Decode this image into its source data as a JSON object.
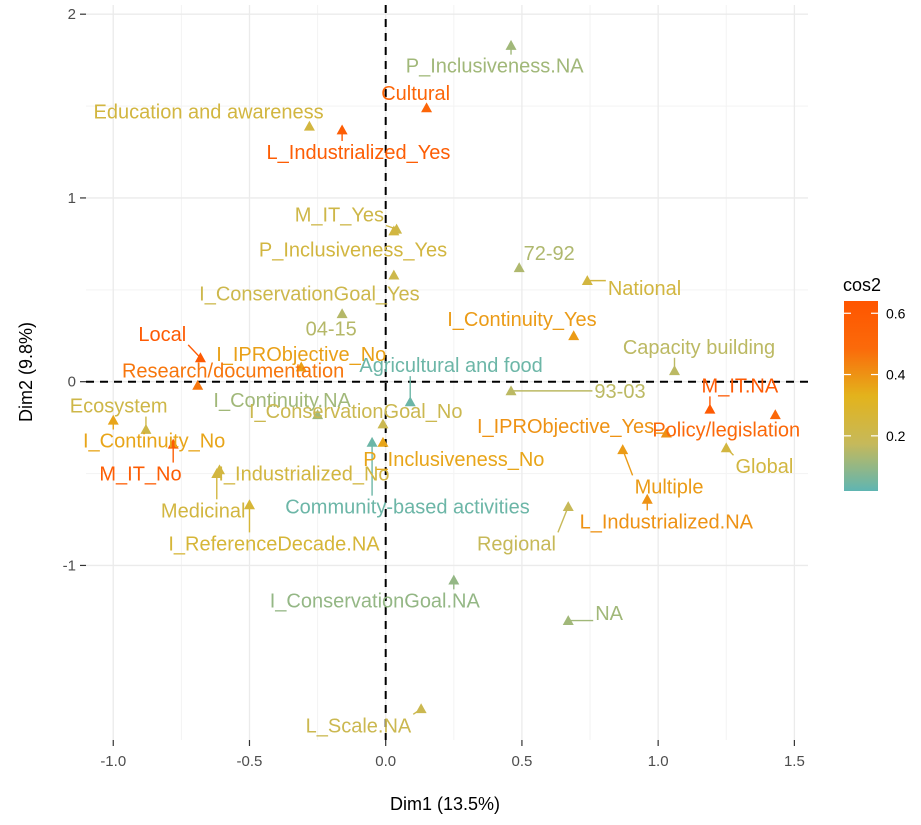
{
  "chart_data": {
    "type": "scatter",
    "title": "",
    "xlabel": "Dim1 (13.5%)",
    "ylabel": "Dim2 (9.8%)",
    "xlim": [
      -1.1,
      1.55
    ],
    "ylim": [
      -1.95,
      2.05
    ],
    "x_ticks": [
      -1.0,
      -0.5,
      0.0,
      0.5,
      1.0,
      1.5
    ],
    "x_tick_labels": [
      "-1.0",
      "-0.5",
      "0.0",
      "0.5",
      "1.0",
      "1.5"
    ],
    "y_ticks": [
      -1,
      0,
      1,
      2
    ],
    "y_tick_labels": [
      "-1",
      "0",
      "1",
      "2"
    ],
    "grid": true,
    "reference_lines": "dashed lines at x = 0 and y = 0",
    "marker": "triangle",
    "legend": {
      "title": "cos2",
      "position": "right",
      "tick_values": [
        0.2,
        0.4,
        0.6
      ],
      "tick_labels": [
        "0.2",
        "0.4",
        "0.6"
      ],
      "range": [
        0.02,
        0.64
      ],
      "colors": [
        "#5fb5b2",
        "#c6b95a",
        "#e3b31c",
        "#fb6a0a",
        "#ff5500"
      ]
    },
    "points": [
      {
        "label": "P_Inclusiveness.NA",
        "x": 0.46,
        "y": 1.83,
        "cos2": 0.12,
        "lx": 0.4,
        "ly": 1.72
      },
      {
        "label": "Cultural",
        "x": 0.15,
        "y": 1.49,
        "cos2": 0.52,
        "lx": 0.11,
        "ly": 1.57
      },
      {
        "label": "Education and awareness",
        "x": -0.28,
        "y": 1.39,
        "cos2": 0.24,
        "lx": -0.65,
        "ly": 1.47
      },
      {
        "label": "L_Industrialized_Yes",
        "x": -0.16,
        "y": 1.37,
        "cos2": 0.58,
        "lx": -0.1,
        "ly": 1.25
      },
      {
        "label": "M_IT_Yes",
        "x": 0.04,
        "y": 0.83,
        "cos2": 0.22,
        "lx": -0.17,
        "ly": 0.91
      },
      {
        "label": "P_Inclusiveness_Yes",
        "x": 0.03,
        "y": 0.82,
        "cos2": 0.24,
        "lx": -0.12,
        "ly": 0.72
      },
      {
        "label": "72-92",
        "x": 0.49,
        "y": 0.62,
        "cos2": 0.14,
        "lx": 0.6,
        "ly": 0.7
      },
      {
        "label": "National",
        "x": 0.74,
        "y": 0.55,
        "cos2": 0.24,
        "lx": 0.95,
        "ly": 0.51
      },
      {
        "label": "I_ConservationGoal_Yes",
        "x": 0.03,
        "y": 0.58,
        "cos2": 0.21,
        "lx": -0.28,
        "ly": 0.48
      },
      {
        "label": "04-15",
        "x": -0.16,
        "y": 0.37,
        "cos2": 0.15,
        "lx": -0.2,
        "ly": 0.29
      },
      {
        "label": "I_Continuity_Yes",
        "x": 0.69,
        "y": 0.25,
        "cos2": 0.38,
        "lx": 0.5,
        "ly": 0.34
      },
      {
        "label": "Local",
        "x": -0.68,
        "y": 0.13,
        "cos2": 0.6,
        "lx": -0.82,
        "ly": 0.26
      },
      {
        "label": "I_IPRObjective_No",
        "x": -0.31,
        "y": 0.08,
        "cos2": 0.37,
        "lx": -0.31,
        "ly": 0.15
      },
      {
        "label": "Capacity building",
        "x": 1.06,
        "y": 0.06,
        "cos2": 0.16,
        "lx": 1.15,
        "ly": 0.19
      },
      {
        "label": "Research/documentation",
        "x": -0.69,
        "y": -0.02,
        "cos2": 0.46,
        "lx": -0.56,
        "ly": 0.06
      },
      {
        "label": "Agricultural and food",
        "x": 0.09,
        "y": -0.11,
        "cos2": 0.04,
        "lx": 0.24,
        "ly": 0.09
      },
      {
        "label": "93-03",
        "x": 0.46,
        "y": -0.05,
        "cos2": 0.16,
        "lx": 0.86,
        "ly": -0.05
      },
      {
        "label": "M_IT.NA",
        "x": 1.19,
        "y": -0.15,
        "cos2": 0.6,
        "lx": 1.3,
        "ly": -0.02
      },
      {
        "label": "Ecosystem",
        "x": -0.88,
        "y": -0.26,
        "cos2": 0.22,
        "lx": -0.98,
        "ly": -0.13
      },
      {
        "label": "I_Continuity.NA",
        "x": -0.25,
        "y": -0.18,
        "cos2": 0.12,
        "lx": -0.38,
        "ly": -0.1
      },
      {
        "label": "I_ConservationGoal_No",
        "x": -0.01,
        "y": -0.23,
        "cos2": 0.2,
        "lx": -0.11,
        "ly": -0.16
      },
      {
        "label": "I_IPRObjective_Yes",
        "x": 1.03,
        "y": -0.28,
        "cos2": 0.4,
        "lx": 0.66,
        "ly": -0.24
      },
      {
        "label": "Policy/legislation",
        "x": 1.43,
        "y": -0.18,
        "cos2": 0.5,
        "lx": 1.25,
        "ly": -0.26
      },
      {
        "label": "I_Continuity_No",
        "x": -1.0,
        "y": -0.21,
        "cos2": 0.36,
        "lx": -0.85,
        "ly": -0.32
      },
      {
        "label": "P_Inclusiveness_No",
        "x": -0.01,
        "y": -0.33,
        "cos2": 0.36,
        "lx": 0.25,
        "ly": -0.42
      },
      {
        "label": "Global",
        "x": 1.25,
        "y": -0.36,
        "cos2": 0.24,
        "lx": 1.39,
        "ly": -0.46
      },
      {
        "label": "M_IT_No",
        "x": -0.78,
        "y": -0.34,
        "cos2": 0.58,
        "lx": -0.9,
        "ly": -0.5
      },
      {
        "label": "I_Industrialized_No",
        "x": -0.61,
        "y": -0.48,
        "cos2": 0.24,
        "lx": -0.3,
        "ly": -0.5
      },
      {
        "label": "Multiple",
        "x": 0.87,
        "y": -0.37,
        "cos2": 0.38,
        "lx": 1.04,
        "ly": -0.57
      },
      {
        "label": "Medicinal",
        "x": -0.62,
        "y": -0.5,
        "cos2": 0.24,
        "lx": -0.67,
        "ly": -0.7
      },
      {
        "label": "Community-based activities",
        "x": -0.05,
        "y": -0.33,
        "cos2": 0.04,
        "lx": 0.08,
        "ly": -0.68
      },
      {
        "label": "Regional",
        "x": 0.67,
        "y": -0.68,
        "cos2": 0.18,
        "lx": 0.48,
        "ly": -0.88
      },
      {
        "label": "L_Industrialized.NA",
        "x": 0.96,
        "y": -0.64,
        "cos2": 0.4,
        "lx": 1.03,
        "ly": -0.76
      },
      {
        "label": "I_ReferenceDecade.NA",
        "x": -0.5,
        "y": -0.67,
        "cos2": 0.26,
        "lx": -0.41,
        "ly": -0.88
      },
      {
        "label": "I_ConservationGoal.NA",
        "x": 0.25,
        "y": -1.08,
        "cos2": 0.1,
        "lx": -0.04,
        "ly": -1.19
      },
      {
        "label": "NA",
        "x": 0.67,
        "y": -1.3,
        "cos2": 0.12,
        "lx": 0.82,
        "ly": -1.26
      },
      {
        "label": "L_Scale.NA",
        "x": 0.13,
        "y": -1.78,
        "cos2": 0.2,
        "lx": -0.1,
        "ly": -1.87
      }
    ]
  }
}
